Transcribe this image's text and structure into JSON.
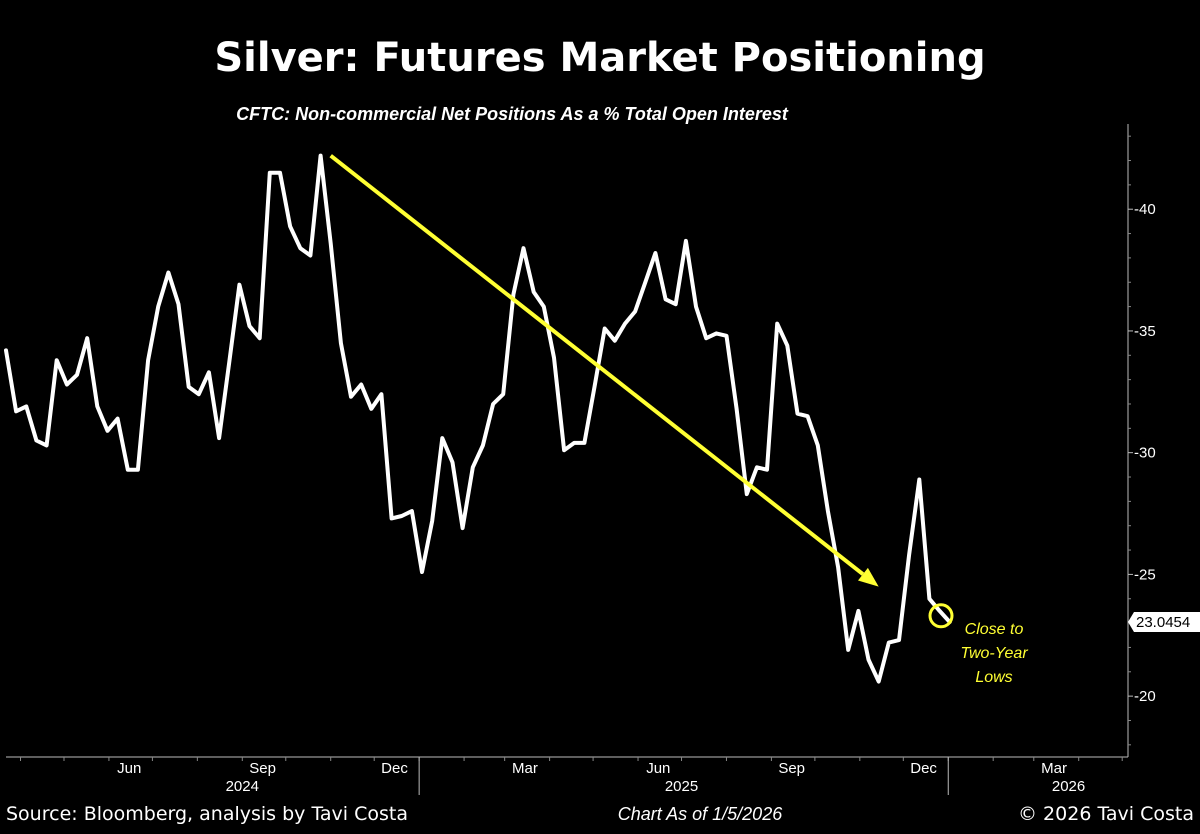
{
  "chart_data": {
    "type": "line",
    "title": "Silver: Futures Market Positioning",
    "subtitle": "CFTC: Non-commercial Net Positions As a % Total Open Interest",
    "x_range": [
      "2024-03-22",
      "2026-05-05"
    ],
    "ylim": [
      17.5,
      43.5
    ],
    "y_ticks": [
      20,
      25,
      30,
      35,
      40
    ],
    "x_tick_labels": [
      {
        "label": "Jun",
        "date": "2024-06-15"
      },
      {
        "label": "Sep",
        "date": "2024-09-15"
      },
      {
        "label": "Dec",
        "date": "2024-12-15"
      },
      {
        "label": "Mar",
        "date": "2025-03-15"
      },
      {
        "label": "Jun",
        "date": "2025-06-15"
      },
      {
        "label": "Sep",
        "date": "2025-09-15"
      },
      {
        "label": "Dec",
        "date": "2025-12-15"
      },
      {
        "label": "Mar",
        "date": "2026-03-15"
      }
    ],
    "year_labels": [
      {
        "label": "2024",
        "date": "2024-09-01"
      },
      {
        "label": "2025",
        "date": "2025-07-01"
      },
      {
        "label": "2026",
        "date": "2026-03-25"
      }
    ],
    "year_dividers": [
      "2025-01-01",
      "2026-01-01"
    ],
    "series": [
      {
        "color": "#ffffff",
        "points": [
          [
            "2024-03-22",
            34.2
          ],
          [
            "2024-03-29",
            31.7
          ],
          [
            "2024-04-05",
            31.9
          ],
          [
            "2024-04-12",
            30.5
          ],
          [
            "2024-04-19",
            30.3
          ],
          [
            "2024-04-26",
            33.8
          ],
          [
            "2024-05-03",
            32.8
          ],
          [
            "2024-05-10",
            33.2
          ],
          [
            "2024-05-17",
            34.7
          ],
          [
            "2024-05-24",
            31.9
          ],
          [
            "2024-05-31",
            30.9
          ],
          [
            "2024-06-07",
            31.4
          ],
          [
            "2024-06-14",
            29.3
          ],
          [
            "2024-06-21",
            29.3
          ],
          [
            "2024-06-28",
            33.8
          ],
          [
            "2024-07-05",
            36.0
          ],
          [
            "2024-07-12",
            37.4
          ],
          [
            "2024-07-19",
            36.1
          ],
          [
            "2024-07-26",
            32.7
          ],
          [
            "2024-08-02",
            32.4
          ],
          [
            "2024-08-09",
            33.3
          ],
          [
            "2024-08-16",
            30.6
          ],
          [
            "2024-08-23",
            33.7
          ],
          [
            "2024-08-30",
            36.9
          ],
          [
            "2024-09-06",
            35.2
          ],
          [
            "2024-09-13",
            34.7
          ],
          [
            "2024-09-20",
            41.5
          ],
          [
            "2024-09-27",
            41.5
          ],
          [
            "2024-10-04",
            39.3
          ],
          [
            "2024-10-11",
            38.4
          ],
          [
            "2024-10-18",
            38.1
          ],
          [
            "2024-10-25",
            42.2
          ],
          [
            "2024-11-01",
            38.6
          ],
          [
            "2024-11-08",
            34.5
          ],
          [
            "2024-11-15",
            32.3
          ],
          [
            "2024-11-22",
            32.8
          ],
          [
            "2024-11-29",
            31.8
          ],
          [
            "2024-12-06",
            32.4
          ],
          [
            "2024-12-13",
            27.3
          ],
          [
            "2024-12-20",
            27.4
          ],
          [
            "2024-12-27",
            27.6
          ],
          [
            "2025-01-03",
            25.1
          ],
          [
            "2025-01-10",
            27.2
          ],
          [
            "2025-01-17",
            30.6
          ],
          [
            "2025-01-24",
            29.6
          ],
          [
            "2025-01-31",
            26.9
          ],
          [
            "2025-02-07",
            29.4
          ],
          [
            "2025-02-14",
            30.3
          ],
          [
            "2025-02-21",
            32.0
          ],
          [
            "2025-02-28",
            32.4
          ],
          [
            "2025-03-07",
            36.5
          ],
          [
            "2025-03-14",
            38.4
          ],
          [
            "2025-03-21",
            36.6
          ],
          [
            "2025-03-28",
            36.0
          ],
          [
            "2025-04-04",
            33.9
          ],
          [
            "2025-04-11",
            30.1
          ],
          [
            "2025-04-18",
            30.4
          ],
          [
            "2025-04-25",
            30.4
          ],
          [
            "2025-05-02",
            32.7
          ],
          [
            "2025-05-09",
            35.1
          ],
          [
            "2025-05-16",
            34.6
          ],
          [
            "2025-05-23",
            35.3
          ],
          [
            "2025-05-30",
            35.8
          ],
          [
            "2025-06-06",
            37.0
          ],
          [
            "2025-06-13",
            38.2
          ],
          [
            "2025-06-20",
            36.3
          ],
          [
            "2025-06-27",
            36.1
          ],
          [
            "2025-07-04",
            38.7
          ],
          [
            "2025-07-11",
            36.0
          ],
          [
            "2025-07-18",
            34.7
          ],
          [
            "2025-07-25",
            34.9
          ],
          [
            "2025-08-01",
            34.8
          ],
          [
            "2025-08-08",
            31.8
          ],
          [
            "2025-08-15",
            28.3
          ],
          [
            "2025-08-22",
            29.4
          ],
          [
            "2025-08-29",
            29.3
          ],
          [
            "2025-09-05",
            35.3
          ],
          [
            "2025-09-12",
            34.4
          ],
          [
            "2025-09-19",
            31.6
          ],
          [
            "2025-09-26",
            31.5
          ],
          [
            "2025-10-03",
            30.3
          ],
          [
            "2025-10-10",
            27.6
          ],
          [
            "2025-10-17",
            25.3
          ],
          [
            "2025-10-24",
            21.9
          ],
          [
            "2025-10-31",
            23.5
          ],
          [
            "2025-11-07",
            21.5
          ],
          [
            "2025-11-14",
            20.6
          ],
          [
            "2025-11-21",
            22.2
          ],
          [
            "2025-11-28",
            22.3
          ],
          [
            "2025-12-05",
            25.8
          ],
          [
            "2025-12-12",
            28.9
          ],
          [
            "2025-12-19",
            24.0
          ],
          [
            "2025-12-26",
            23.5
          ],
          [
            "2026-01-02",
            23.0454
          ]
        ]
      }
    ],
    "last_value_label": "23.0454",
    "trend_arrow": {
      "color": "#ffff33",
      "from": [
        "2024-11-01",
        42.2
      ],
      "to": [
        "2025-11-14",
        24.5
      ]
    },
    "highlight_circle": {
      "color": "#ffff33",
      "center": [
        "2025-12-27",
        23.3
      ]
    },
    "annotation_lines": [
      "Close to",
      "Two-Year",
      "Lows"
    ]
  },
  "footer": {
    "source": "Source: Bloomberg, analysis by Tavi Costa",
    "as_of": "Chart As of 1/5/2026",
    "copyright": "© 2026 Tavi Costa"
  }
}
